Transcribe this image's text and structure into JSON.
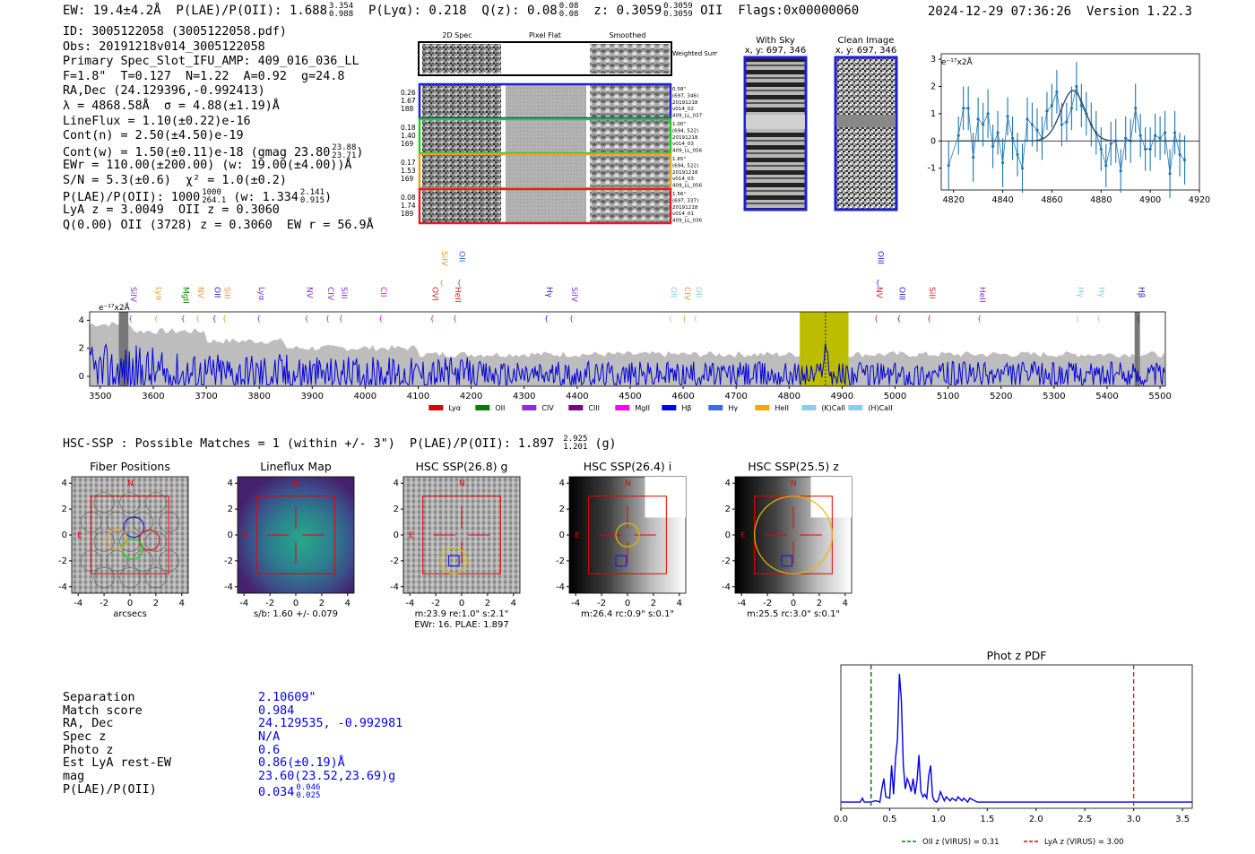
{
  "header": {
    "ew": "19.4±4.2Å",
    "plae_poii": "1.688",
    "plae_hi": "3.354",
    "plae_lo": "0.988",
    "plya": "0.218",
    "qz": "0.08",
    "qz_hi": "0.08",
    "qz_lo": "0.08",
    "z": "0.3059",
    "z_hi": "0.3059",
    "z_lo": "0.3059",
    "z_line": "OII",
    "flags": "Flags:0x00000060",
    "timestamp": "2024-12-29 07:36:26",
    "version": "Version 1.22.3"
  },
  "info": {
    "id": "ID: 3005122058 (3005122058.pdf)",
    "obs": "Obs: 20191218v014_3005122058",
    "primary": "Primary Spec_Slot_IFU_AMP: 409_016_036_LL",
    "fwhm": "F=1.8\"  T=0.127  N=1.22  A=0.92  g=24.8",
    "radec": "RA,Dec (24.129396,-0.992413)",
    "lambda": "λ = 4868.58Å  σ = 4.88(±1.19)Å",
    "lineflux": "LineFlux = 1.10(±0.22)e-16",
    "contn": "Cont(n) = 2.50(±4.50)e-19",
    "contw": "Cont(w) = 1.50(±0.11)e-18 (gmag 23.80",
    "contw_hi": "23.88",
    "contw_lo": "23.71",
    "ewr": "EWr = 110.00(±200.00) (w: 19.00(±4.00))Å",
    "sn": "S/N = 5.3(±0.6)  χ² = 1.0(±0.2)",
    "plae": "P(LAE)/P(OII): 1000",
    "plae_hi": "1000",
    "plae_lo": "264.1",
    "plae_w": "(w: 1.334",
    "plae_w_hi": "2.141",
    "plae_w_lo": "0.915",
    "lya": "LyA z = 3.0049  OII z = 0.3060",
    "q": "Q(0.00) OII (3728) z = 0.3060  EW r = 56.9Å"
  },
  "spec2d": {
    "col_titles": [
      "2D Spec",
      "Pixel Flat",
      "Smoothed"
    ],
    "weighted_label": "Weighted Sum",
    "rows": [
      {
        "left": [
          "0.26",
          "1.67",
          "188"
        ],
        "right": [
          "0.58\"",
          "(697, 346)",
          "20191218",
          "v014_02",
          "409_LL_037"
        ],
        "color": "#1f1fd6"
      },
      {
        "left": [
          "0.18",
          "1.40",
          "169"
        ],
        "right": [
          "1.00\"",
          "(694, 522)",
          "20191218",
          "v014_03",
          "409_LL_056"
        ],
        "color": "#22cc22"
      },
      {
        "left": [
          "0.17",
          "1.53",
          "169"
        ],
        "right": [
          "1.65\"",
          "(694, 522)",
          "20191218",
          "v014_03",
          "409_LL_056"
        ],
        "color": "#e6a020"
      },
      {
        "left": [
          "0.08",
          "1.74",
          "189"
        ],
        "right": [
          "1.56\"",
          "(697, 337)",
          "20191218",
          "v014_01",
          "409_LL_036"
        ],
        "color": "#e02020"
      }
    ]
  },
  "cutouts": {
    "with_sky": "With Sky",
    "with_sky_xy": "x, y: 697, 346",
    "clean": "Clean Image",
    "clean_xy": "x, y: 697, 346"
  },
  "zoom_chart": {
    "type": "line",
    "ylabel": "e⁻¹⁷x2Å",
    "xlim": [
      4815,
      4920
    ],
    "ylim": [
      -1.8,
      3.2
    ],
    "xticks": [
      4820,
      4840,
      4860,
      4880,
      4900,
      4920
    ],
    "yticks": [
      -1,
      0,
      1,
      2,
      3
    ],
    "x": [
      4818,
      4822,
      4824,
      4826,
      4828,
      4830,
      4832,
      4834,
      4836,
      4838,
      4840,
      4842,
      4844,
      4846,
      4848,
      4850,
      4852,
      4854,
      4856,
      4858,
      4860,
      4862,
      4864,
      4866,
      4868,
      4870,
      4872,
      4874,
      4876,
      4878,
      4880,
      4882,
      4884,
      4886,
      4888,
      4890,
      4892,
      4894,
      4896,
      4898,
      4900,
      4902,
      4904,
      4906,
      4908,
      4910,
      4912,
      4914
    ],
    "y": [
      -0.9,
      0.2,
      1.2,
      1.2,
      -0.6,
      0.8,
      0.6,
      1.0,
      -0.2,
      0.3,
      -0.8,
      0.9,
      0.1,
      -0.5,
      -1.0,
      0.8,
      0.6,
      0.4,
      0.1,
      1.1,
      1.3,
      1.8,
      0.6,
      0.7,
      1.2,
      2.0,
      1.3,
      1.0,
      0.6,
      0.3,
      -0.3,
      -0.9,
      -0.1,
      0.0,
      -1.1,
      0.1,
      0.0,
      1.2,
      0.2,
      -0.3,
      -0.3,
      0.2,
      0.1,
      0.3,
      -1.2,
      0.3,
      -0.5,
      -0.7
    ],
    "err": [
      0.9,
      0.7,
      0.8,
      0.8,
      0.9,
      0.8,
      0.8,
      0.9,
      0.8,
      0.8,
      0.9,
      0.7,
      0.8,
      0.8,
      0.9,
      0.8,
      0.8,
      0.8,
      0.8,
      0.7,
      0.8,
      0.8,
      0.8,
      0.7,
      0.8,
      0.9,
      0.8,
      0.8,
      0.8,
      0.8,
      0.8,
      0.8,
      0.8,
      0.8,
      0.8,
      0.8,
      0.8,
      0.9,
      0.8,
      0.8,
      0.8,
      0.8,
      0.8,
      0.8,
      0.9,
      0.8,
      0.8,
      0.9
    ],
    "fit": {
      "center": 4868.6,
      "sigma": 4.9,
      "amp": 1.85
    }
  },
  "spectrum": {
    "type": "line",
    "ylabel": "e⁻¹⁷x2Å",
    "xlim": [
      3480,
      5510
    ],
    "ylim": [
      -0.7,
      4.6
    ],
    "xticks": [
      3500,
      3600,
      3700,
      3800,
      3900,
      4000,
      4100,
      4200,
      4300,
      4400,
      4500,
      4600,
      4700,
      4800,
      4900,
      5000,
      5100,
      5200,
      5300,
      5400,
      5500
    ],
    "yticks": [
      0,
      2,
      4
    ],
    "highlight_band": [
      4820,
      4912
    ],
    "line_center": 4868.6,
    "hatch_left": [
      3535,
      3553
    ],
    "hatch_right": [
      5452,
      5462
    ],
    "lines_upper": [
      {
        "label": "SiIV",
        "x": 4145,
        "color": "#e6a020"
      },
      {
        "label": "OII",
        "x": 4178,
        "color": "#2060e0"
      },
      {
        "label": "OIII",
        "x": 4968,
        "color": "#1f1fd6"
      }
    ],
    "lines_lower": [
      {
        "label": "SiIV",
        "x": 3558,
        "color": "#8a2be2"
      },
      {
        "label": "Lyα",
        "x": 3606,
        "color": "#e6a020"
      },
      {
        "label": "MgII",
        "x": 3657,
        "color": "#008000"
      },
      {
        "label": "NV",
        "x": 3685,
        "color": "#e6a020"
      },
      {
        "label": "OII",
        "x": 3716,
        "color": "#1f1fd6"
      },
      {
        "label": "SiII",
        "x": 3735,
        "color": "#e6a020"
      },
      {
        "label": "Lyα",
        "x": 3800,
        "color": "#8a2be2"
      },
      {
        "label": "NV",
        "x": 3890,
        "color": "#8a2be2"
      },
      {
        "label": "CIV",
        "x": 3930,
        "color": "#8a2be2"
      },
      {
        "label": "SiII",
        "x": 3955,
        "color": "#8a2be2"
      },
      {
        "label": "CII",
        "x": 4030,
        "color": "#ff00ff"
      },
      {
        "label": "OVI",
        "x": 4127,
        "color": "#e02020"
      },
      {
        "label": "HeII",
        "x": 4170,
        "color": "#e02020"
      },
      {
        "label": "Hγ",
        "x": 4343,
        "color": "#1f1fd6"
      },
      {
        "label": "SiIV",
        "x": 4390,
        "color": "#8a2be2"
      },
      {
        "label": "OII",
        "x": 4577,
        "color": "#87ceeb"
      },
      {
        "label": "CIV",
        "x": 4603,
        "color": "#e6a020"
      },
      {
        "label": "OII",
        "x": 4624,
        "color": "#87ceeb"
      },
      {
        "label": "NV",
        "x": 4965,
        "color": "#e02020"
      },
      {
        "label": "OIII",
        "x": 5008,
        "color": "#1f1fd6"
      },
      {
        "label": "SiII",
        "x": 5065,
        "color": "#e02020"
      },
      {
        "label": "HeII",
        "x": 5160,
        "color": "#8a2be2"
      },
      {
        "label": "Hγ",
        "x": 5345,
        "color": "#87ceeb"
      },
      {
        "label": "Hγ",
        "x": 5385,
        "color": "#87ceeb"
      },
      {
        "label": "Hβ",
        "x": 5460,
        "color": "#1f1fd6"
      }
    ],
    "legend": [
      {
        "label": "Lyα",
        "color": "#e00000"
      },
      {
        "label": "OII",
        "color": "#008000"
      },
      {
        "label": "CIV",
        "color": "#8a2be2"
      },
      {
        "label": "CIII",
        "color": "#800080"
      },
      {
        "label": "MgII",
        "color": "#ff00ff"
      },
      {
        "label": "Hβ",
        "color": "#0000ff"
      },
      {
        "label": "Hγ",
        "color": "#4169e1"
      },
      {
        "label": "HeII",
        "color": "#ffa500"
      },
      {
        "label": "(K)CaII",
        "color": "#87ceeb"
      },
      {
        "label": "(H)CaII",
        "color": "#87ceeb"
      }
    ]
  },
  "hsc_line": {
    "text": "HSC-SSP : Possible Matches = 1 (within +/- 3\")  P(LAE)/P(OII): 1.897",
    "hi": "2.925",
    "lo": "1.201",
    "band": "(g)"
  },
  "thumbs": [
    {
      "title": "Fiber Positions",
      "caption1": "arcsecs",
      "caption2": ""
    },
    {
      "title": "Lineflux Map",
      "caption1": "s/b: 1.60 +/- 0.079",
      "caption2": ""
    },
    {
      "title": "HSC SSP(26.8) g",
      "caption1": "m:23.9  re:1.0\"  s:2.1\"",
      "caption2": "EWr: 16. PLAE: 1.897"
    },
    {
      "title": "HSC SSP(26.4) i",
      "caption1": "m:26.4 rc:0.9\"  s:0.1\"",
      "caption2": ""
    },
    {
      "title": "HSC SSP(25.5) z",
      "caption1": "m:25.5 rc:3.0\"  s:0.1\"",
      "caption2": ""
    }
  ],
  "thumb_axis": {
    "ticks": [
      "-4",
      "-2",
      "0",
      "2",
      "4"
    ],
    "n_label": "N",
    "e_label": "E"
  },
  "match": {
    "rows": [
      {
        "k": "Separation",
        "v": "2.10609\""
      },
      {
        "k": "Match score",
        "v": "0.984"
      },
      {
        "k": "RA, Dec",
        "v": "24.129535, -0.992981"
      },
      {
        "k": "Spec z",
        "v": "N/A"
      },
      {
        "k": "Photo z",
        "v": "0.6"
      },
      {
        "k": "Est LyA rest-EW",
        "v": "0.86(±0.19)Å"
      },
      {
        "k": "mag",
        "v": "23.60(23.52,23.69)g"
      },
      {
        "k": "P(LAE)/P(OII)",
        "v": "0.034"
      }
    ],
    "plae_hi": "0.046",
    "plae_lo": "0.025"
  },
  "photz": {
    "type": "line",
    "title": "Phot z PDF",
    "xlim": [
      0,
      3.6
    ],
    "xticks": [
      "0.0",
      "0.5",
      "1.0",
      "1.5",
      "2.0",
      "2.5",
      "3.0",
      "3.5"
    ],
    "oii_z": 0.31,
    "lya_z": 3.0,
    "legend_oii": "OII z (VIRUS) = 0.31",
    "legend_lya": "LyA z (VIRUS) = 3.00",
    "x": [
      0.0,
      0.2,
      0.22,
      0.24,
      0.3,
      0.36,
      0.4,
      0.42,
      0.44,
      0.46,
      0.5,
      0.52,
      0.54,
      0.56,
      0.58,
      0.6,
      0.62,
      0.64,
      0.66,
      0.68,
      0.7,
      0.72,
      0.74,
      0.76,
      0.78,
      0.8,
      0.82,
      0.84,
      0.86,
      0.88,
      0.9,
      0.92,
      0.94,
      0.96,
      0.98,
      1.0,
      1.02,
      1.06,
      1.08,
      1.12,
      1.14,
      1.18,
      1.2,
      1.24,
      1.26,
      1.3,
      1.32,
      1.4,
      3.6
    ],
    "y": [
      0.02,
      0.02,
      0.05,
      0.02,
      0.02,
      0.03,
      0.02,
      0.12,
      0.2,
      0.06,
      0.05,
      0.3,
      0.08,
      0.35,
      0.5,
      1.0,
      0.8,
      0.3,
      0.12,
      0.2,
      0.16,
      0.1,
      0.2,
      0.08,
      0.18,
      0.38,
      0.1,
      0.06,
      0.08,
      0.05,
      0.22,
      0.3,
      0.06,
      0.03,
      0.02,
      0.04,
      0.1,
      0.03,
      0.06,
      0.03,
      0.05,
      0.03,
      0.06,
      0.03,
      0.05,
      0.02,
      0.05,
      0.02,
      0.02
    ]
  }
}
